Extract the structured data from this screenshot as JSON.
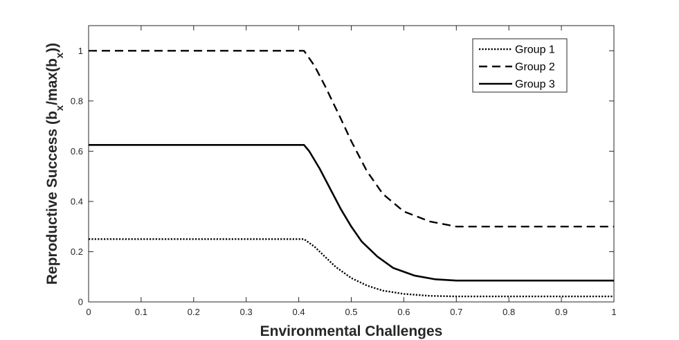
{
  "chart_data": {
    "type": "line",
    "title": "",
    "xlabel": "Environmental Challenges",
    "ylabel": {
      "prefix": "Reproductive Success (b",
      "sub1": "x",
      "middle": "/max(b",
      "sub2": "x",
      "suffix": "))"
    },
    "xlim": [
      0,
      1
    ],
    "ylim": [
      0,
      1.1
    ],
    "xticks": [
      0,
      0.1,
      0.2,
      0.3,
      0.4,
      0.5,
      0.6,
      0.7,
      0.8,
      0.9,
      1
    ],
    "xtick_labels": [
      "0",
      "0.1",
      "0.2",
      "0.3",
      "0.4",
      "0.5",
      "0.6",
      "0.7",
      "0.8",
      "0.9",
      "1"
    ],
    "yticks": [
      0,
      0.2,
      0.4,
      0.6,
      0.8,
      1
    ],
    "ytick_labels": [
      "0",
      "0.2",
      "0.4",
      "0.6",
      "0.8",
      "1"
    ],
    "grid": false,
    "legend_position": "top-right",
    "series": [
      {
        "name": "Group 1",
        "style": "dotted",
        "color": "#000000",
        "x": [
          0,
          0.41,
          0.43,
          0.45,
          0.47,
          0.5,
          0.53,
          0.56,
          0.6,
          0.65,
          0.7,
          1
        ],
        "y": [
          0.25,
          0.25,
          0.22,
          0.18,
          0.14,
          0.095,
          0.065,
          0.045,
          0.032,
          0.024,
          0.022,
          0.022
        ]
      },
      {
        "name": "Group 2",
        "style": "dashed",
        "color": "#000000",
        "x": [
          0,
          0.41,
          0.43,
          0.45,
          0.48,
          0.5,
          0.53,
          0.56,
          0.6,
          0.65,
          0.7,
          1
        ],
        "y": [
          1.0,
          1.0,
          0.94,
          0.86,
          0.73,
          0.64,
          0.52,
          0.43,
          0.36,
          0.32,
          0.3,
          0.3
        ]
      },
      {
        "name": "Group 3",
        "style": "solid",
        "color": "#000000",
        "x": [
          0,
          0.41,
          0.42,
          0.44,
          0.46,
          0.48,
          0.5,
          0.52,
          0.55,
          0.58,
          0.62,
          0.66,
          0.7,
          1
        ],
        "y": [
          0.625,
          0.625,
          0.6,
          0.53,
          0.45,
          0.37,
          0.3,
          0.24,
          0.18,
          0.135,
          0.105,
          0.09,
          0.085,
          0.085
        ]
      }
    ]
  }
}
